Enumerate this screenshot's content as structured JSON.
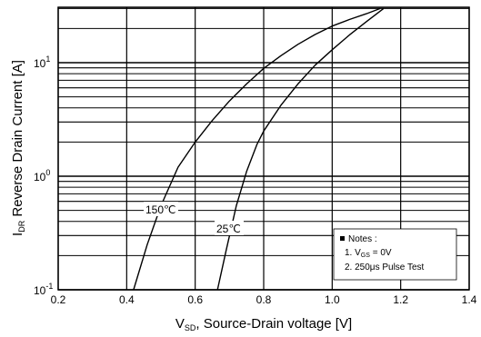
{
  "chart_data": {
    "type": "line",
    "xlabel": {
      "main": "V",
      "sub": "SD",
      "rest": ", Source-Drain voltage [V]"
    },
    "ylabel": {
      "main": "I",
      "sub": "DR",
      "rest": " Reverse Drain Current [A]"
    },
    "xlim": [
      0.2,
      1.4
    ],
    "ylim": [
      0.1,
      30
    ],
    "yscale": "log",
    "grid": true,
    "x_ticks": [
      "0.2",
      "0.4",
      "0.6",
      "0.8",
      "1.0",
      "1.2",
      "1.4"
    ],
    "x_tick_values": [
      0.2,
      0.4,
      0.6,
      0.8,
      1.0,
      1.2,
      1.4
    ],
    "y_ticks": [
      {
        "value": 0.1,
        "base": "10",
        "exp": "-1"
      },
      {
        "value": 1,
        "base": "10",
        "exp": "0"
      },
      {
        "value": 10,
        "base": "10",
        "exp": "1"
      }
    ],
    "series": [
      {
        "name": "150℃",
        "x": [
          0.42,
          0.46,
          0.5,
          0.55,
          0.6,
          0.65,
          0.7,
          0.75,
          0.8,
          0.85,
          0.9,
          0.95,
          1.0,
          1.05,
          1.1,
          1.14
        ],
        "y": [
          0.1,
          0.25,
          0.55,
          1.2,
          2.0,
          3.1,
          4.6,
          6.5,
          8.9,
          11.5,
          14.5,
          17.7,
          21.0,
          24.0,
          27.0,
          30.0
        ]
      },
      {
        "name": "25℃",
        "x": [
          0.665,
          0.69,
          0.72,
          0.75,
          0.78,
          0.8,
          0.85,
          0.9,
          0.95,
          1.0,
          1.05,
          1.1,
          1.15
        ],
        "y": [
          0.1,
          0.22,
          0.55,
          1.1,
          1.9,
          2.5,
          4.2,
          6.5,
          9.5,
          13.0,
          17.5,
          23.0,
          30.0
        ]
      }
    ],
    "notes": {
      "title": "Notes :",
      "line1": {
        "pre": "1. V",
        "sub": "GS",
        "post": " = 0V"
      },
      "line2": "2. 250μs Pulse Test"
    }
  }
}
